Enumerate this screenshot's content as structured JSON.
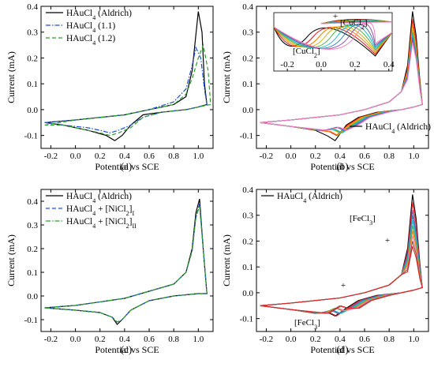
{
  "chart_data": [
    {
      "panel": "(a)",
      "type": "line",
      "xlabel": "Potential vs SCE",
      "ylabel": "Current (mA)",
      "xlim": [
        -0.28,
        1.12
      ],
      "ylim": [
        -0.15,
        0.4
      ],
      "xticks": [
        "-0.2",
        "0.0",
        "0.2",
        "0.4",
        "0.6",
        "0.8",
        "1.0"
      ],
      "yticks": [
        "-0.1",
        "0.0",
        "0.1",
        "0.2",
        "0.3",
        "0.4"
      ],
      "legend_position": "top-left",
      "series": [
        {
          "name": "HAuCl",
          "sub": "4",
          "suffix": " (Aldrich)",
          "color": "#000000",
          "style": "solid",
          "x": [
            -0.25,
            0.0,
            0.4,
            0.6,
            0.8,
            0.9,
            0.95,
            1.0,
            1.03,
            1.05,
            1.07,
            1.0,
            0.9,
            0.7,
            0.55,
            0.45,
            0.38,
            0.32,
            0.25,
            0.1,
            -0.1,
            -0.25
          ],
          "y": [
            -0.05,
            -0.04,
            -0.02,
            0.0,
            0.02,
            0.05,
            0.15,
            0.38,
            0.3,
            0.1,
            0.02,
            0.01,
            0.0,
            -0.01,
            -0.02,
            -0.06,
            -0.1,
            -0.12,
            -0.1,
            -0.08,
            -0.06,
            -0.05
          ]
        },
        {
          "name": "HAuCl",
          "sub": "4",
          "suffix": " (1.1)",
          "color": "#1f4fd6",
          "style": "dashdot",
          "x": [
            -0.25,
            0.0,
            0.4,
            0.6,
            0.8,
            0.9,
            0.95,
            0.98,
            1.02,
            1.05,
            1.07,
            1.0,
            0.9,
            0.7,
            0.55,
            0.45,
            0.35,
            0.28,
            0.2,
            0.1,
            -0.1,
            -0.25
          ],
          "y": [
            -0.05,
            -0.04,
            -0.02,
            0.0,
            0.03,
            0.08,
            0.17,
            0.24,
            0.2,
            0.08,
            0.02,
            0.01,
            0.0,
            -0.01,
            -0.03,
            -0.06,
            -0.08,
            -0.09,
            -0.08,
            -0.07,
            -0.06,
            -0.05
          ]
        },
        {
          "name": "HAuCl",
          "sub": "4",
          "suffix": " (1.2)",
          "color": "#2ca02c",
          "style": "dashed",
          "x": [
            -0.25,
            0.0,
            0.4,
            0.6,
            0.8,
            0.9,
            0.95,
            1.0,
            1.04,
            1.08,
            1.1,
            1.0,
            0.9,
            0.7,
            0.55,
            0.45,
            0.35,
            0.28,
            0.2,
            0.1,
            -0.1,
            -0.25
          ],
          "y": [
            -0.06,
            -0.04,
            -0.02,
            0.0,
            0.02,
            0.06,
            0.12,
            0.2,
            0.25,
            0.15,
            0.02,
            0.01,
            0.0,
            -0.01,
            -0.03,
            -0.07,
            -0.09,
            -0.1,
            -0.09,
            -0.08,
            -0.06,
            -0.06
          ]
        }
      ]
    },
    {
      "panel": "(b)",
      "type": "line",
      "xlabel": "Potential vs SCE",
      "ylabel": "Current (mA)",
      "xlim": [
        -0.28,
        1.12
      ],
      "ylim": [
        -0.15,
        0.4
      ],
      "xticks": [
        "-0.2",
        "0.0",
        "0.2",
        "0.4",
        "0.6",
        "0.8",
        "1.0"
      ],
      "yticks": [
        "-0.1",
        "0.0",
        "0.1",
        "0.2",
        "0.3",
        "0.4"
      ],
      "legend_position": "bottom-right",
      "legend": {
        "name": "HAuCl",
        "sub": "4",
        "suffix": " (Aldrich)"
      },
      "annotations": [
        {
          "text": "[CuCl",
          "sub": "2",
          "suffix": "]"
        },
        {
          "text": "[CuCl",
          "sub": "2",
          "suffix": "]"
        },
        {
          "text": "+"
        }
      ],
      "series": [
        {
          "color": "#000000",
          "peak": 0.38,
          "cath": -0.12
        },
        {
          "color": "#e41a1c",
          "peak": 0.35,
          "cath": -0.1
        },
        {
          "color": "#ff7f00",
          "peak": 0.33,
          "cath": -0.1
        },
        {
          "color": "#d4b000",
          "peak": 0.31,
          "cath": -0.09
        },
        {
          "color": "#4daf4a",
          "peak": 0.3,
          "cath": -0.09
        },
        {
          "color": "#17becf",
          "peak": 0.29,
          "cath": -0.09
        },
        {
          "color": "#377eb8",
          "peak": 0.28,
          "cath": -0.08
        },
        {
          "color": "#984ea3",
          "peak": 0.27,
          "cath": -0.08
        },
        {
          "color": "#f781bf",
          "peak": 0.26,
          "cath": -0.08
        }
      ],
      "inset": {
        "xlim": [
          -0.28,
          0.42
        ],
        "xticks": [
          "-0.2",
          "0.0",
          "0.2",
          "0.4"
        ]
      }
    },
    {
      "panel": "(c)",
      "type": "line",
      "xlabel": "Potential vs SCE",
      "ylabel": "Current (mA)",
      "xlim": [
        -0.28,
        1.12
      ],
      "ylim": [
        -0.15,
        0.45
      ],
      "xticks": [
        "-0.2",
        "0.0",
        "0.2",
        "0.4",
        "0.6",
        "0.8",
        "1.0"
      ],
      "yticks": [
        "-0.1",
        "0.0",
        "0.1",
        "0.2",
        "0.3",
        "0.4"
      ],
      "legend_position": "top-left",
      "series": [
        {
          "name": "HAuCl",
          "sub": "4",
          "suffix": " (Aldrich)",
          "color": "#000000",
          "style": "solid",
          "x": [
            -0.25,
            0.0,
            0.4,
            0.6,
            0.8,
            0.9,
            0.95,
            0.98,
            1.01,
            1.04,
            1.07,
            1.0,
            0.8,
            0.6,
            0.45,
            0.38,
            0.34,
            0.3,
            0.2,
            0.0,
            -0.25
          ],
          "y": [
            -0.05,
            -0.04,
            -0.01,
            0.02,
            0.05,
            0.1,
            0.2,
            0.35,
            0.41,
            0.2,
            0.01,
            0.01,
            0.0,
            -0.02,
            -0.06,
            -0.1,
            -0.12,
            -0.09,
            -0.07,
            -0.06,
            -0.05
          ]
        },
        {
          "name": "HAuCl",
          "sub": "4",
          "suffix": " + [NiCl",
          "sub2": "2",
          "suffix2": "]",
          "sub3": "I",
          "color": "#1f4fd6",
          "style": "dashed",
          "x": [
            -0.25,
            0.0,
            0.4,
            0.6,
            0.8,
            0.9,
            0.95,
            0.98,
            1.01,
            1.04,
            1.07,
            1.0,
            0.8,
            0.6,
            0.45,
            0.38,
            0.34,
            0.3,
            0.2,
            0.0,
            -0.25
          ],
          "y": [
            -0.05,
            -0.04,
            -0.01,
            0.02,
            0.05,
            0.1,
            0.19,
            0.33,
            0.39,
            0.2,
            0.01,
            0.01,
            0.0,
            -0.02,
            -0.06,
            -0.1,
            -0.11,
            -0.09,
            -0.07,
            -0.06,
            -0.05
          ]
        },
        {
          "name": "HAuCl",
          "sub": "4",
          "suffix": " + [NiCl",
          "sub2": "2",
          "suffix2": "]",
          "sub3": "II",
          "color": "#2ca02c",
          "style": "dashdot",
          "x": [
            -0.25,
            0.0,
            0.4,
            0.6,
            0.8,
            0.9,
            0.95,
            0.98,
            1.01,
            1.04,
            1.07,
            1.0,
            0.8,
            0.6,
            0.45,
            0.38,
            0.34,
            0.3,
            0.2,
            0.0,
            -0.25
          ],
          "y": [
            -0.05,
            -0.04,
            -0.01,
            0.02,
            0.05,
            0.1,
            0.19,
            0.33,
            0.38,
            0.2,
            0.01,
            0.01,
            0.0,
            -0.02,
            -0.06,
            -0.1,
            -0.11,
            -0.09,
            -0.07,
            -0.06,
            -0.05
          ]
        }
      ]
    },
    {
      "panel": "(d)",
      "type": "line",
      "xlabel": "Potential vs SCE",
      "ylabel": "Current (mA)",
      "xlim": [
        -0.28,
        1.12
      ],
      "ylim": [
        -0.15,
        0.4
      ],
      "xticks": [
        "-0.2",
        "0.0",
        "0.2",
        "0.4",
        "0.6",
        "0.8",
        "1.0"
      ],
      "yticks": [
        "-0.1",
        "0.0",
        "0.1",
        "0.2",
        "0.3",
        "0.4"
      ],
      "legend_position": "top-left",
      "legend": {
        "name": "HAuCl",
        "sub": "4",
        "suffix": " (Aldrich)"
      },
      "annotations": [
        {
          "text": "[FeCl",
          "sub": "3",
          "suffix": "]"
        },
        {
          "text": "[FeCl",
          "sub": "3",
          "suffix": "]"
        },
        {
          "text": "+"
        },
        {
          "text": "+"
        }
      ],
      "series": [
        {
          "color": "#000000",
          "peak": 0.38,
          "cath": -0.09
        },
        {
          "color": "#e41a1c",
          "peak": 0.35,
          "cath": -0.09
        },
        {
          "color": "#984ea3",
          "peak": 0.32,
          "cath": -0.08
        },
        {
          "color": "#377eb8",
          "peak": 0.3,
          "cath": -0.08
        },
        {
          "color": "#17becf",
          "peak": 0.28,
          "cath": -0.08
        },
        {
          "color": "#4daf4a",
          "peak": 0.26,
          "cath": -0.07
        },
        {
          "color": "#ff7f00",
          "peak": 0.24,
          "cath": -0.07
        },
        {
          "color": "#f781bf",
          "peak": 0.22,
          "cath": -0.07
        },
        {
          "color": "#8c564b",
          "peak": 0.2,
          "cath": -0.06
        },
        {
          "color": "#d62728",
          "peak": 0.18,
          "cath": -0.06
        }
      ]
    }
  ]
}
